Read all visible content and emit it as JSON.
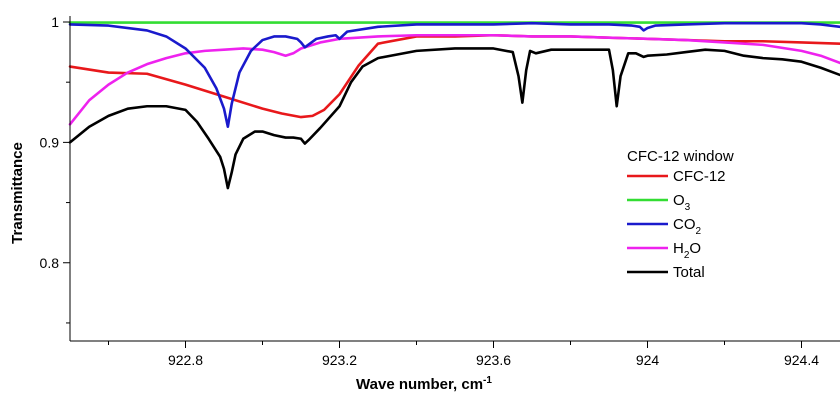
{
  "chart_data": {
    "type": "line",
    "title": "",
    "xlabel": {
      "text": "Wave number, cm",
      "sup": "-1"
    },
    "ylabel": "Transmittance",
    "xlim": [
      922.5,
      924.5
    ],
    "ylim": [
      0.735,
      1.0
    ],
    "x_ticks": [
      922.8,
      923.2,
      923.6,
      924.0,
      924.4
    ],
    "x_tick_labels": [
      "922.8",
      "923.2",
      "923.6",
      "924",
      "924.4"
    ],
    "x_minor_ticks": [
      922.6,
      923.0,
      923.4,
      923.8,
      924.2
    ],
    "y_ticks": [
      0.8,
      0.9,
      1.0
    ],
    "y_tick_labels": [
      "0.8",
      "0.9",
      "1"
    ],
    "legend": {
      "title": "CFC-12 window",
      "placement": "right",
      "entries": [
        {
          "key": "cfc12",
          "text": "CFC-12",
          "sub": "",
          "after": "",
          "color": "#e8181b"
        },
        {
          "key": "o3",
          "text": "O",
          "sub": "3",
          "after": "",
          "color": "#33dd33"
        },
        {
          "key": "co2",
          "text": "CO",
          "sub": "2",
          "after": "",
          "color": "#1a1acc"
        },
        {
          "key": "h2o",
          "text": "H",
          "sub": "2",
          "after": "O",
          "color": "#ee22ee"
        },
        {
          "key": "total",
          "text": "Total",
          "sub": "",
          "after": "",
          "color": "#000000"
        }
      ]
    },
    "series": [
      {
        "key": "o3",
        "color": "#33dd33",
        "x": [
          922.5,
          924.5
        ],
        "y": [
          0.9995,
          0.9995
        ]
      },
      {
        "key": "cfc12",
        "color": "#e8181b",
        "x": [
          922.5,
          922.6,
          922.7,
          922.8,
          922.9,
          923.0,
          923.05,
          923.1,
          923.13,
          923.16,
          923.2,
          923.25,
          923.3,
          923.4,
          923.5,
          923.6,
          923.7,
          923.8,
          923.9,
          924.0,
          924.1,
          924.2,
          924.3,
          924.4,
          924.5
        ],
        "y": [
          0.963,
          0.958,
          0.957,
          0.948,
          0.938,
          0.928,
          0.924,
          0.921,
          0.922,
          0.927,
          0.94,
          0.964,
          0.982,
          0.988,
          0.988,
          0.989,
          0.988,
          0.988,
          0.987,
          0.986,
          0.985,
          0.984,
          0.984,
          0.983,
          0.982
        ]
      },
      {
        "key": "h2o",
        "color": "#ee22ee",
        "x": [
          922.5,
          922.55,
          922.6,
          922.65,
          922.7,
          922.75,
          922.8,
          922.85,
          922.9,
          922.95,
          923.0,
          923.03,
          923.06,
          923.08,
          923.1,
          923.15,
          923.2,
          923.3,
          923.4,
          923.5,
          923.6,
          923.7,
          923.8,
          923.9,
          924.0,
          924.1,
          924.2,
          924.3,
          924.4,
          924.45,
          924.5
        ],
        "y": [
          0.915,
          0.935,
          0.948,
          0.958,
          0.965,
          0.97,
          0.974,
          0.976,
          0.977,
          0.978,
          0.977,
          0.975,
          0.972,
          0.974,
          0.978,
          0.983,
          0.986,
          0.988,
          0.989,
          0.989,
          0.989,
          0.988,
          0.988,
          0.987,
          0.986,
          0.985,
          0.983,
          0.981,
          0.976,
          0.972,
          0.966
        ]
      },
      {
        "key": "co2",
        "color": "#1a1acc",
        "x": [
          922.5,
          922.6,
          922.7,
          922.75,
          922.8,
          922.85,
          922.88,
          922.9,
          922.91,
          922.92,
          922.94,
          922.97,
          923.0,
          923.03,
          923.06,
          923.09,
          923.1,
          923.11,
          923.14,
          923.17,
          923.19,
          923.2,
          923.22,
          923.3,
          923.4,
          923.5,
          923.6,
          923.7,
          923.8,
          923.9,
          923.96,
          923.98,
          923.99,
          924.0,
          924.02,
          924.1,
          924.2,
          924.3,
          924.4,
          924.45,
          924.5
        ],
        "y": [
          0.998,
          0.997,
          0.993,
          0.988,
          0.978,
          0.962,
          0.945,
          0.928,
          0.913,
          0.932,
          0.958,
          0.976,
          0.985,
          0.988,
          0.988,
          0.986,
          0.983,
          0.979,
          0.986,
          0.988,
          0.989,
          0.986,
          0.992,
          0.996,
          0.998,
          0.998,
          0.998,
          0.999,
          0.998,
          0.998,
          0.997,
          0.996,
          0.993,
          0.995,
          0.997,
          0.998,
          0.999,
          0.999,
          0.999,
          0.998,
          0.996
        ]
      },
      {
        "key": "total",
        "color": "#000000",
        "x": [
          922.5,
          922.55,
          922.6,
          922.65,
          922.7,
          922.75,
          922.8,
          922.83,
          922.86,
          922.89,
          922.9,
          922.91,
          922.92,
          922.93,
          922.95,
          922.98,
          923.0,
          923.03,
          923.06,
          923.08,
          923.1,
          923.11,
          923.12,
          923.15,
          923.2,
          923.23,
          923.26,
          923.3,
          923.35,
          923.4,
          923.5,
          923.6,
          923.65,
          923.665,
          923.675,
          923.685,
          923.695,
          923.71,
          923.75,
          923.8,
          923.85,
          923.9,
          923.91,
          923.92,
          923.93,
          923.95,
          923.97,
          923.99,
          924.0,
          924.05,
          924.1,
          924.15,
          924.2,
          924.25,
          924.3,
          924.35,
          924.4,
          924.45,
          924.5
        ],
        "y": [
          0.9,
          0.913,
          0.922,
          0.928,
          0.93,
          0.93,
          0.927,
          0.917,
          0.903,
          0.888,
          0.878,
          0.862,
          0.875,
          0.89,
          0.903,
          0.909,
          0.909,
          0.906,
          0.904,
          0.904,
          0.903,
          0.899,
          0.902,
          0.912,
          0.93,
          0.95,
          0.963,
          0.97,
          0.973,
          0.976,
          0.978,
          0.978,
          0.975,
          0.955,
          0.933,
          0.96,
          0.976,
          0.974,
          0.977,
          0.977,
          0.977,
          0.977,
          0.96,
          0.93,
          0.955,
          0.974,
          0.974,
          0.971,
          0.972,
          0.973,
          0.975,
          0.977,
          0.976,
          0.972,
          0.97,
          0.969,
          0.967,
          0.962,
          0.956
        ]
      }
    ]
  }
}
